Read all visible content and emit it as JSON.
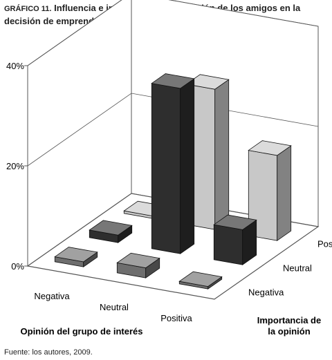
{
  "title": {
    "label": "GRÁFICO 11.",
    "text": "Influencia e importancia de la opinión de los amigos en la decisión de emprender - Colombia"
  },
  "source": "Fuente: los autores, 2009.",
  "colors": {
    "dark_bar": "#2e2e2e",
    "mid_bar": "#6e6e6e",
    "light_bar": "#c8c8c8",
    "frame": "#555555"
  },
  "chart_data": {
    "type": "bar",
    "subtype": "3d-column",
    "title": "Influencia e importancia de la opinión de los amigos en la decisión de emprender - Colombia",
    "xlabel": "Opinión del grupo de interés",
    "zlabel": "Importancia de la opinión",
    "categories": [
      "Negativa",
      "Neutral",
      "Positiva"
    ],
    "depth_categories": [
      "Negativa",
      "Neutral",
      "Positiva"
    ],
    "y_ticks": [
      "0%",
      "20%",
      "40%"
    ],
    "ylim": [
      0,
      40
    ],
    "grid": true,
    "legend": "none",
    "series": [
      {
        "name": "Negativa",
        "shade": "mid_bar",
        "values": [
          1,
          2,
          0.5
        ]
      },
      {
        "name": "Neutral",
        "shade": "dark_bar",
        "values": [
          1.5,
          33,
          7
        ]
      },
      {
        "name": "Positiva",
        "shade": "light_bar",
        "values": [
          0.5,
          28,
          17
        ]
      }
    ]
  }
}
